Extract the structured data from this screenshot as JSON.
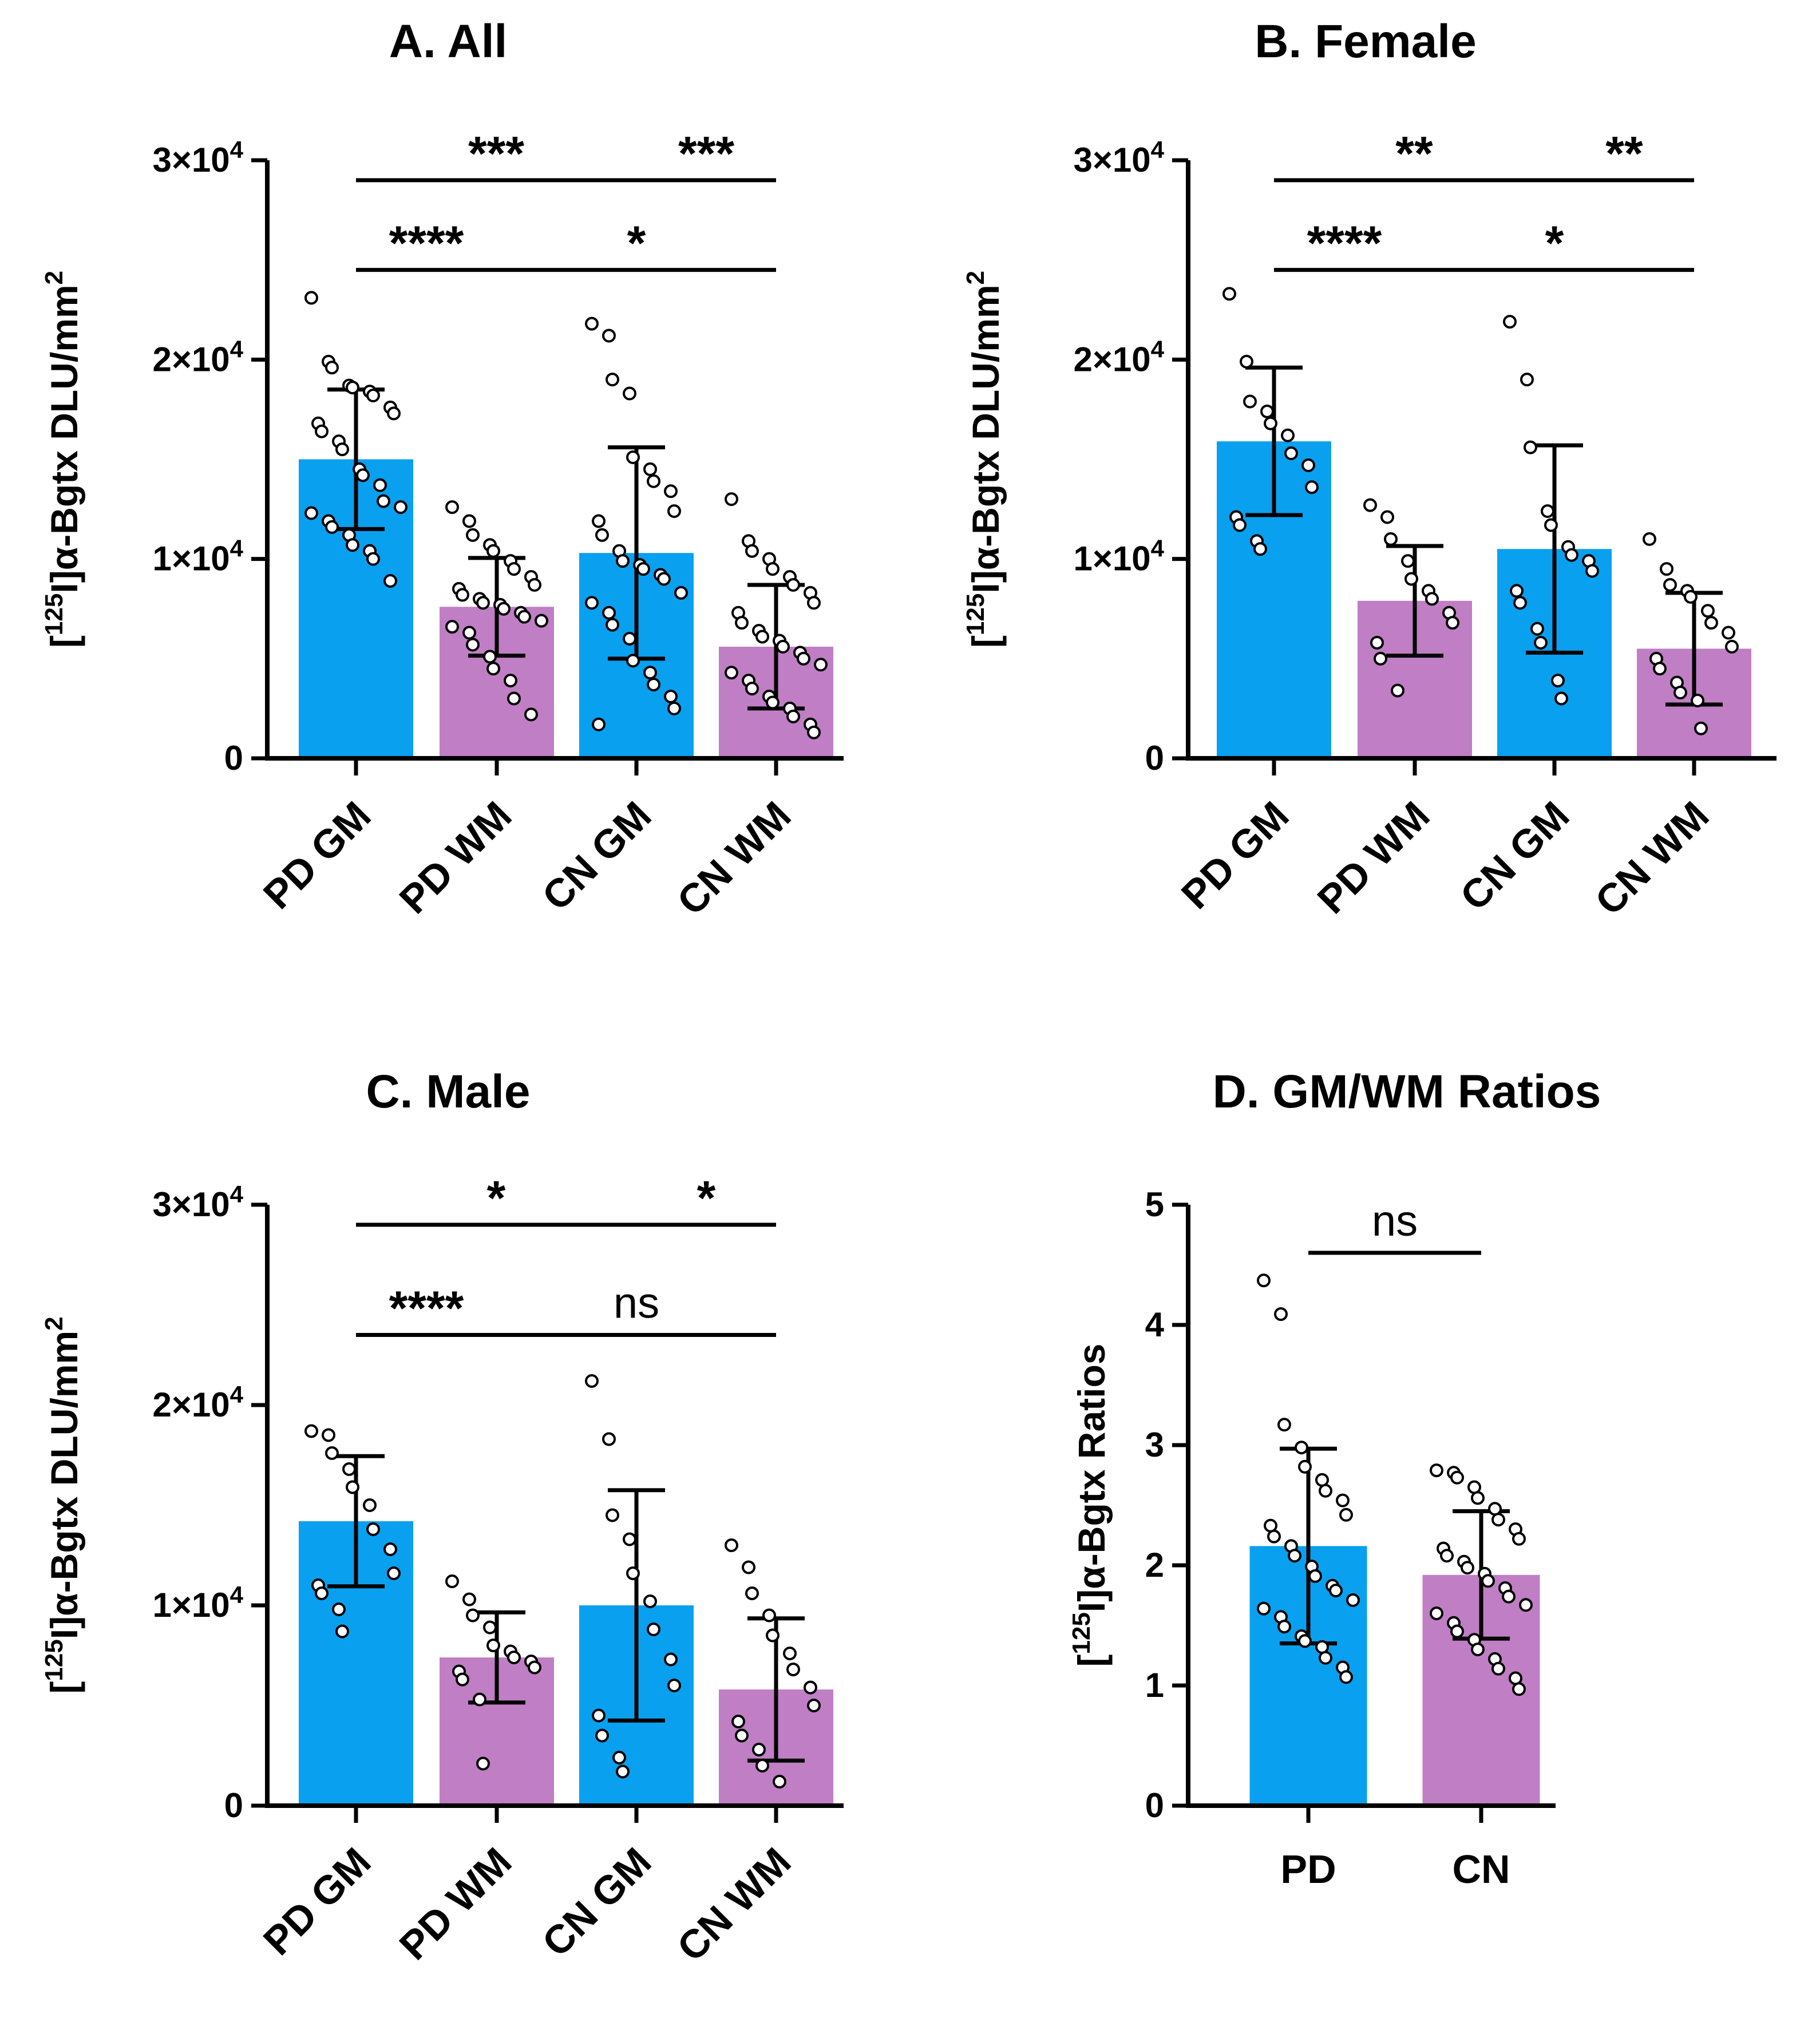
{
  "chart_data": [
    {
      "panel": "A",
      "type": "bar",
      "title": "A. All",
      "ylabel": "[125I]α-Bgtx DLU/mm2",
      "ylabel_parts": [
        "[",
        "125",
        "I]α-Bgtx DLU/mm",
        "2"
      ],
      "ylim": [
        0,
        30000
      ],
      "yticks": [
        0,
        10000,
        20000,
        30000
      ],
      "ytick_labels": [
        {
          "value": 0,
          "mant": "0",
          "exp": ""
        },
        {
          "value": 10000,
          "mant": "1×10",
          "exp": "4"
        },
        {
          "value": 20000,
          "mant": "2×10",
          "exp": "4"
        },
        {
          "value": 30000,
          "mant": "3×10",
          "exp": "4"
        }
      ],
      "categories": [
        "PD GM",
        "PD WM",
        "CN GM",
        "CN WM"
      ],
      "bar_colors": [
        "#0aa0f0",
        "#c07ec4",
        "#0aa0f0",
        "#c07ec4"
      ],
      "means": [
        15000,
        7600,
        10300,
        5600
      ],
      "sd": [
        3500,
        2450,
        5300,
        3100
      ],
      "points": [
        [
          23100,
          19900,
          19600,
          18700,
          18600,
          18400,
          18200,
          17600,
          17300,
          16800,
          16400,
          15900,
          15500,
          14500,
          14200,
          13700,
          12900,
          12600,
          12300,
          11900,
          11600,
          11200,
          10700,
          10400,
          10000,
          8900
        ],
        [
          12600,
          11900,
          11200,
          10700,
          10400,
          9900,
          9500,
          9100,
          8700,
          8500,
          8200,
          8000,
          7800,
          7700,
          7500,
          7300,
          7100,
          6900,
          6600,
          6300,
          5700,
          5100,
          4500,
          3900,
          3000,
          2200
        ],
        [
          21800,
          21200,
          19000,
          18300,
          15100,
          14500,
          13900,
          13400,
          12400,
          11900,
          11200,
          10400,
          9900,
          9700,
          9500,
          9200,
          9000,
          8300,
          7800,
          7300,
          6700,
          6000,
          4900,
          4300,
          3700,
          3100,
          2500,
          1700
        ],
        [
          13000,
          10900,
          10400,
          10000,
          9500,
          9100,
          8700,
          8300,
          7800,
          7300,
          6800,
          6400,
          6100,
          5900,
          5600,
          5300,
          5000,
          4700,
          4300,
          3900,
          3500,
          3100,
          2800,
          2500,
          2100,
          1700,
          1300
        ]
      ],
      "brackets": [
        {
          "from": 0,
          "to": 2,
          "level": 29000,
          "label": "***"
        },
        {
          "from": 2,
          "to": 3,
          "level": 29000,
          "label": "***"
        },
        {
          "from": 0,
          "to": 1,
          "level": 24500,
          "label": "****"
        },
        {
          "from": 1,
          "to": 3,
          "level": 24500,
          "label": "*"
        }
      ]
    },
    {
      "panel": "B",
      "type": "bar",
      "title": "B. Female",
      "ylabel": "[125I]α-Bgtx DLU/mm2",
      "ylabel_parts": [
        "[",
        "125",
        "I]α-Bgtx DLU/mm",
        "2"
      ],
      "ylim": [
        0,
        30000
      ],
      "yticks": [
        0,
        10000,
        20000,
        30000
      ],
      "ytick_labels": [
        {
          "value": 0,
          "mant": "0",
          "exp": ""
        },
        {
          "value": 10000,
          "mant": "1×10",
          "exp": "4"
        },
        {
          "value": 20000,
          "mant": "2×10",
          "exp": "4"
        },
        {
          "value": 30000,
          "mant": "3×10",
          "exp": "4"
        }
      ],
      "categories": [
        "PD GM",
        "PD WM",
        "CN GM",
        "CN WM"
      ],
      "bar_colors": [
        "#0aa0f0",
        "#c07ec4",
        "#0aa0f0",
        "#c07ec4"
      ],
      "means": [
        15900,
        7900,
        10500,
        5500
      ],
      "sd": [
        3700,
        2750,
        5200,
        2800
      ],
      "points": [
        [
          23300,
          19900,
          17900,
          17400,
          16800,
          16200,
          15300,
          14700,
          13600,
          12100,
          11700,
          10900,
          10500
        ],
        [
          12700,
          12100,
          11000,
          9900,
          9000,
          8400,
          8000,
          7300,
          6800,
          5800,
          5000,
          3400
        ],
        [
          21900,
          19000,
          15600,
          12400,
          11700,
          10600,
          10200,
          9900,
          9400,
          8400,
          7800,
          6500,
          5800,
          3900,
          3000
        ],
        [
          11000,
          9500,
          8700,
          8400,
          8100,
          7400,
          6800,
          6300,
          5600,
          5000,
          4500,
          3800,
          3300,
          2900,
          1500
        ]
      ],
      "brackets": [
        {
          "from": 0,
          "to": 2,
          "level": 29000,
          "label": "**"
        },
        {
          "from": 2,
          "to": 3,
          "level": 29000,
          "label": "**"
        },
        {
          "from": 0,
          "to": 1,
          "level": 24500,
          "label": "****"
        },
        {
          "from": 1,
          "to": 3,
          "level": 24500,
          "label": "*"
        }
      ]
    },
    {
      "panel": "C",
      "type": "bar",
      "title": "C. Male",
      "ylabel": "[125I]α-Bgtx DLU/mm2",
      "ylabel_parts": [
        "[",
        "125",
        "I]α-Bgtx DLU/mm",
        "2"
      ],
      "ylim": [
        0,
        30000
      ],
      "yticks": [
        0,
        10000,
        20000,
        30000
      ],
      "ytick_labels": [
        {
          "value": 0,
          "mant": "0",
          "exp": ""
        },
        {
          "value": 10000,
          "mant": "1×10",
          "exp": "4"
        },
        {
          "value": 20000,
          "mant": "2×10",
          "exp": "4"
        },
        {
          "value": 30000,
          "mant": "3×10",
          "exp": "4"
        }
      ],
      "categories": [
        "PD GM",
        "PD WM",
        "CN GM",
        "CN WM"
      ],
      "bar_colors": [
        "#0aa0f0",
        "#c07ec4",
        "#0aa0f0",
        "#c07ec4"
      ],
      "means": [
        14200,
        7400,
        10000,
        5800
      ],
      "sd": [
        3250,
        2250,
        5750,
        3550
      ],
      "points": [
        [
          18700,
          18500,
          17600,
          16800,
          15900,
          15000,
          13800,
          12800,
          11600,
          11000,
          10600,
          9800,
          8700
        ],
        [
          11200,
          10300,
          9500,
          8900,
          8000,
          7700,
          7400,
          7200,
          6900,
          6700,
          6300,
          5300,
          2100
        ],
        [
          21200,
          18300,
          14500,
          13300,
          11600,
          10200,
          8800,
          7300,
          6000,
          4500,
          3500,
          2400,
          1700
        ],
        [
          13000,
          11900,
          10600,
          9500,
          8500,
          7600,
          6800,
          5900,
          5000,
          4200,
          3500,
          2800,
          2000,
          1200
        ]
      ],
      "brackets": [
        {
          "from": 0,
          "to": 2,
          "level": 29000,
          "label": "*"
        },
        {
          "from": 2,
          "to": 3,
          "level": 29000,
          "label": "*"
        },
        {
          "from": 0,
          "to": 1,
          "level": 23500,
          "label": "****"
        },
        {
          "from": 1,
          "to": 3,
          "level": 23500,
          "label": "ns"
        }
      ]
    },
    {
      "panel": "D",
      "type": "bar",
      "title": "D. GM/WM Ratios",
      "ylabel": "[125I]α-Bgtx Ratios",
      "ylabel_parts": [
        "[",
        "125",
        "I]α-Bgtx Ratios",
        ""
      ],
      "ylim": [
        0,
        5
      ],
      "yticks": [
        0,
        1,
        2,
        3,
        4,
        5
      ],
      "ytick_labels": [
        {
          "value": 0,
          "mant": "0",
          "exp": ""
        },
        {
          "value": 1,
          "mant": "1",
          "exp": ""
        },
        {
          "value": 2,
          "mant": "2",
          "exp": ""
        },
        {
          "value": 3,
          "mant": "3",
          "exp": ""
        },
        {
          "value": 4,
          "mant": "4",
          "exp": ""
        },
        {
          "value": 5,
          "mant": "5",
          "exp": ""
        }
      ],
      "categories": [
        "PD",
        "CN"
      ],
      "bar_colors": [
        "#0aa0f0",
        "#c07ec4"
      ],
      "means": [
        2.16,
        1.92
      ],
      "sd": [
        0.81,
        0.53
      ],
      "points": [
        [
          4.37,
          4.09,
          3.17,
          2.98,
          2.82,
          2.71,
          2.62,
          2.54,
          2.42,
          2.33,
          2.24,
          2.16,
          2.08,
          1.99,
          1.91,
          1.83,
          1.79,
          1.71,
          1.64,
          1.57,
          1.49,
          1.41,
          1.37,
          1.32,
          1.23,
          1.15,
          1.07
        ],
        [
          2.79,
          2.77,
          2.73,
          2.65,
          2.56,
          2.47,
          2.38,
          2.3,
          2.22,
          2.14,
          2.08,
          2.03,
          1.98,
          1.93,
          1.87,
          1.81,
          1.74,
          1.67,
          1.6,
          1.52,
          1.45,
          1.38,
          1.3,
          1.22,
          1.14,
          1.06,
          0.97
        ]
      ],
      "brackets": [
        {
          "from": 0,
          "to": 1,
          "level": 4.6,
          "label": "ns"
        }
      ]
    }
  ]
}
